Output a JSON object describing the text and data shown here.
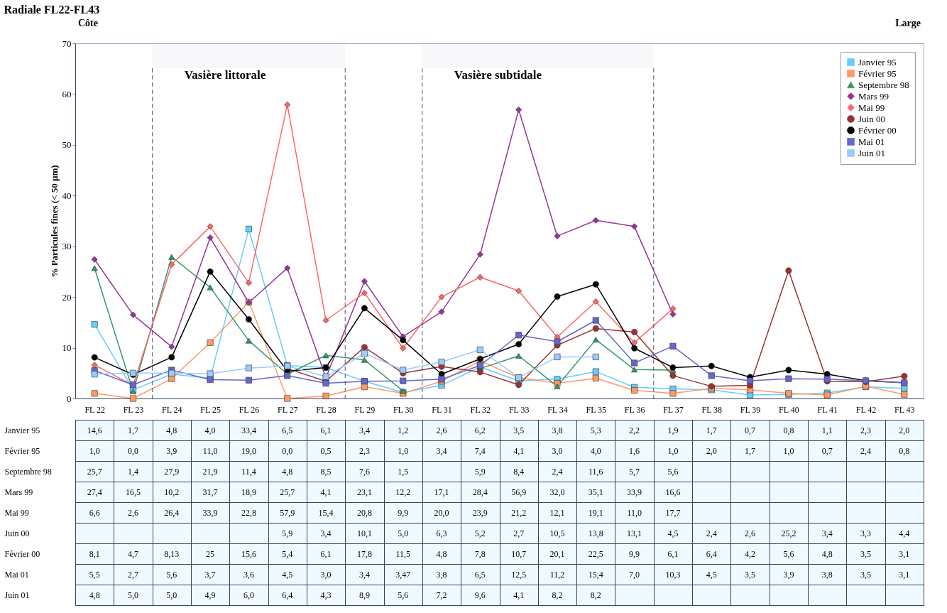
{
  "chart_data": {
    "type": "line",
    "title": "Radiale FL22-FL43",
    "ylabel": "% Particules fines (< 50 µm)",
    "categories": [
      "FL 22",
      "FL 23",
      "FL 24",
      "FL 25",
      "FL 26",
      "FL 27",
      "FL 28",
      "FL 29",
      "FL 30",
      "FL 31",
      "FL 32",
      "FL 33",
      "FL 34",
      "FL 35",
      "FL 36",
      "FL 37",
      "FL 38",
      "FL 39",
      "FL 40",
      "FL 41",
      "FL 42",
      "FL 43"
    ],
    "ylim": [
      0,
      70
    ],
    "yticks": [
      0,
      10,
      20,
      30,
      40,
      50,
      60,
      70
    ],
    "grid": false,
    "legend": "top right",
    "data_labels": true,
    "annotations": [
      "Côte",
      "Large"
    ],
    "bands": [
      {
        "axis": "x",
        "from": "FL 24",
        "to": "FL 28",
        "label": "Vasière littorale"
      },
      {
        "axis": "x",
        "from": "FL 31",
        "to": "FL 36",
        "label": "Vasière subtidale"
      }
    ],
    "series": [
      {
        "name": "Janvier 95",
        "color": "#66ccff",
        "marker": "square",
        "values": [
          14.6,
          1.7,
          4.8,
          4.0,
          33.4,
          6.5,
          6.1,
          3.4,
          1.2,
          2.6,
          6.2,
          3.5,
          3.8,
          5.3,
          2.2,
          1.9,
          1.7,
          0.7,
          0.8,
          1.1,
          2.3,
          2.0
        ],
        "value_labels": [
          "14,6",
          "1,7",
          "4,8",
          "4,0",
          "33,4",
          "6,5",
          "6,1",
          "3,4",
          "1,2",
          "2,6",
          "6,2",
          "3,5",
          "3,8",
          "5,3",
          "2,2",
          "1,9",
          "1,7",
          "0,7",
          "0,8",
          "1,1",
          "2,3",
          "2,0"
        ]
      },
      {
        "name": "Février 95",
        "color": "#ff9966",
        "marker": "square",
        "values": [
          1.0,
          0.0,
          3.9,
          11.0,
          19.0,
          0.0,
          0.5,
          2.3,
          1.0,
          3.4,
          7.4,
          4.1,
          3.0,
          4.0,
          1.6,
          1.0,
          2.0,
          1.7,
          1.0,
          0.7,
          2.4,
          0.8
        ],
        "value_labels": [
          "1,0",
          "0,0",
          "3,9",
          "11,0",
          "19,0",
          "0,0",
          "0,5",
          "2,3",
          "1,0",
          "3,4",
          "7,4",
          "4,1",
          "3,0",
          "4,0",
          "1,6",
          "1,0",
          "2,0",
          "1,7",
          "1,0",
          "0,7",
          "2,4",
          "0,8"
        ]
      },
      {
        "name": "Septembre 98",
        "color": "#339966",
        "marker": "triangle",
        "values": [
          25.7,
          1.4,
          27.9,
          21.9,
          11.4,
          4.8,
          8.5,
          7.6,
          1.5,
          null,
          5.9,
          8.4,
          2.4,
          11.6,
          5.7,
          5.6,
          null,
          null,
          null,
          null,
          null,
          null
        ],
        "value_labels": [
          "25,7",
          "1,4",
          "27,9",
          "21,9",
          "11,4",
          "4,8",
          "8,5",
          "7,6",
          "1,5",
          null,
          "5,9",
          "8,4",
          "2,4",
          "11,6",
          "5,7",
          "5,6",
          null,
          null,
          null,
          null,
          null,
          null
        ]
      },
      {
        "name": "Mars 99",
        "color": "#993399",
        "marker": "diamond",
        "values": [
          27.4,
          16.5,
          10.2,
          31.7,
          18.9,
          25.7,
          4.1,
          23.1,
          12.2,
          17.1,
          28.4,
          56.9,
          32.0,
          35.1,
          33.9,
          16.6,
          null,
          null,
          null,
          null,
          null,
          null
        ],
        "value_labels": [
          "27,4",
          "16,5",
          "10,2",
          "31,7",
          "18,9",
          "25,7",
          "4,1",
          "23,1",
          "12,2",
          "17,1",
          "28,4",
          "56,9",
          "32,0",
          "35,1",
          "33,9",
          "16,6",
          null,
          null,
          null,
          null,
          null,
          null
        ]
      },
      {
        "name": "Mai 99",
        "color": "#ff6666",
        "marker": "diamond",
        "values": [
          6.6,
          2.6,
          26.4,
          33.9,
          22.8,
          57.9,
          15.4,
          20.8,
          9.9,
          20.0,
          23.9,
          21.2,
          12.1,
          19.1,
          11.0,
          17.7,
          null,
          null,
          null,
          null,
          null,
          null
        ],
        "value_labels": [
          "6,6",
          "2,6",
          "26,4",
          "33,9",
          "22,8",
          "57,9",
          "15,4",
          "20,8",
          "9,9",
          "20,0",
          "23,9",
          "21,2",
          "12,1",
          "19,1",
          "11,0",
          "17,7",
          null,
          null,
          null,
          null,
          null,
          null
        ]
      },
      {
        "name": "Juin 00",
        "color": "#993333",
        "marker": "circle",
        "values": [
          null,
          null,
          null,
          null,
          null,
          5.9,
          3.4,
          10.1,
          5.0,
          6.3,
          5.2,
          2.7,
          10.5,
          13.8,
          13.1,
          4.5,
          2.4,
          2.6,
          25.2,
          3.4,
          3.3,
          4.4
        ],
        "value_labels": [
          null,
          null,
          null,
          null,
          null,
          "5,9",
          "3,4",
          "10,1",
          "5,0",
          "6,3",
          "5,2",
          "2,7",
          "10,5",
          "13,8",
          "13,1",
          "4,5",
          "2,4",
          "2,6",
          "25,2",
          "3,4",
          "3,3",
          "4,4"
        ]
      },
      {
        "name": "Février 00",
        "color": "#000000",
        "marker": "circle",
        "values": [
          8.1,
          4.7,
          8.13,
          25,
          15.6,
          5.4,
          6.1,
          17.8,
          11.5,
          4.8,
          7.8,
          10.7,
          20.1,
          22.5,
          9.9,
          6.1,
          6.4,
          4.2,
          5.6,
          4.8,
          3.5,
          3.1
        ],
        "value_labels": [
          "8,1",
          "4,7",
          "8,13",
          "25",
          "15,6",
          "5,4",
          "6,1",
          "17,8",
          "11,5",
          "4,8",
          "7,8",
          "10,7",
          "20,1",
          "22,5",
          "9,9",
          "6,1",
          "6,4",
          "4,2",
          "5,6",
          "4,8",
          "3,5",
          "3,1"
        ]
      },
      {
        "name": "Mai 01",
        "color": "#6666cc",
        "marker": "square",
        "values": [
          5.5,
          2.7,
          5.6,
          3.7,
          3.6,
          4.5,
          3.0,
          3.4,
          3.47,
          3.8,
          6.5,
          12.5,
          11.2,
          15.4,
          7.0,
          10.3,
          4.5,
          3.5,
          3.9,
          3.8,
          3.5,
          3.1
        ],
        "value_labels": [
          "5,5",
          "2,7",
          "5,6",
          "3,7",
          "3,6",
          "4,5",
          "3,0",
          "3,4",
          "3,47",
          "3,8",
          "6,5",
          "12,5",
          "11,2",
          "15,4",
          "7,0",
          "10,3",
          "4,5",
          "3,5",
          "3,9",
          "3,8",
          "3,5",
          "3,1"
        ]
      },
      {
        "name": "Juin 01",
        "color": "#99ccff",
        "marker": "square",
        "values": [
          4.8,
          5.0,
          5.0,
          4.9,
          6.0,
          6.4,
          4.3,
          8.9,
          5.6,
          7.2,
          9.6,
          4.1,
          8.2,
          8.2,
          null,
          null,
          null,
          null,
          null,
          null,
          null,
          null
        ],
        "value_labels": [
          "4,8",
          "5,0",
          "5,0",
          "4,9",
          "6,0",
          "6,4",
          "4,3",
          "8,9",
          "5,6",
          "7,2",
          "9,6",
          "4,1",
          "8,2",
          "8,2",
          null,
          null,
          null,
          null,
          null,
          null,
          null,
          null
        ]
      }
    ]
  }
}
